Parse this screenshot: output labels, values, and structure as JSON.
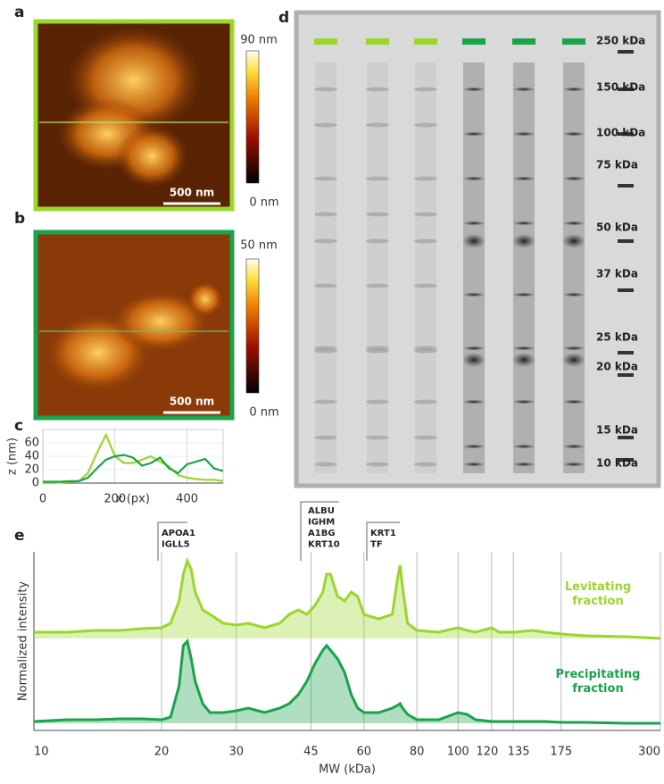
{
  "panel_labels": [
    "a",
    "b",
    "c",
    "d",
    "e"
  ],
  "afm": [
    {
      "scale_bar": "500 nm",
      "colorbar_max": "90 nm",
      "colorbar_min": "0 nm"
    },
    {
      "scale_bar": "500 nm",
      "colorbar_max": "50 nm",
      "colorbar_min": "0 nm"
    }
  ],
  "gel": {
    "markers": [
      "250 kDa",
      "150 kDa",
      "100 kDa",
      "75 kDa",
      "50 kDa",
      "37 kDa",
      "25 kDa",
      "20 kDa",
      "15 kDa",
      "10 kDa"
    ]
  },
  "annotations": [
    [
      "APOA1",
      "IGLL5"
    ],
    [
      "ALBU",
      "IGHM",
      "A1BG",
      "KRT10"
    ],
    [
      "KRT1",
      "TF"
    ]
  ],
  "chart_data": [
    {
      "type": "line",
      "xlabel": "x (px)",
      "ylabel": "z (nm)",
      "xlim": [
        0,
        500
      ],
      "ylim": [
        0,
        80
      ],
      "xticks": [
        0,
        200,
        400
      ],
      "yticks": [
        0,
        20,
        40,
        60
      ],
      "grid": true,
      "x": [
        0,
        25,
        50,
        75,
        100,
        125,
        150,
        175,
        200,
        225,
        250,
        275,
        300,
        325,
        350,
        375,
        400,
        425,
        450,
        475,
        500
      ],
      "series": [
        {
          "color": "#9bd62a",
          "values": [
            0,
            0,
            1,
            2,
            3,
            15,
            45,
            72,
            40,
            30,
            30,
            35,
            40,
            32,
            25,
            12,
            8,
            6,
            5,
            5,
            3
          ]
        },
        {
          "color": "#1aa34a",
          "values": [
            2,
            2,
            2,
            3,
            3,
            8,
            22,
            35,
            40,
            42,
            38,
            26,
            30,
            38,
            22,
            15,
            28,
            32,
            36,
            22,
            18
          ]
        }
      ]
    },
    {
      "type": "line",
      "xlabel": "MW (kDa)",
      "ylabel": "Normalized intensity",
      "log_x": true,
      "xlim": [
        10,
        300
      ],
      "ylim": [
        0,
        2
      ],
      "xticks": [
        10,
        20,
        30,
        45,
        60,
        80,
        100,
        120,
        135,
        175,
        300
      ],
      "grid": true,
      "x": [
        10,
        12,
        14,
        16,
        18,
        20,
        21,
        22,
        22.5,
        23,
        23.5,
        24,
        25,
        26,
        28,
        30,
        32,
        35,
        38,
        40,
        42,
        44,
        46,
        48,
        49,
        50,
        52,
        54,
        56,
        58,
        60,
        65,
        70,
        72,
        73,
        74,
        76,
        80,
        90,
        100,
        105,
        110,
        120,
        125,
        135,
        150,
        160,
        175,
        200,
        250,
        300
      ],
      "series": [
        {
          "name": "Levitating fraction",
          "color": "#9bd62a",
          "values": [
            1.1,
            1.1,
            1.12,
            1.12,
            1.14,
            1.15,
            1.2,
            1.45,
            1.75,
            1.9,
            1.8,
            1.55,
            1.35,
            1.3,
            1.2,
            1.18,
            1.2,
            1.15,
            1.2,
            1.3,
            1.35,
            1.3,
            1.4,
            1.55,
            1.75,
            1.75,
            1.5,
            1.45,
            1.55,
            1.5,
            1.3,
            1.25,
            1.3,
            1.7,
            1.85,
            1.6,
            1.2,
            1.12,
            1.1,
            1.15,
            1.12,
            1.1,
            1.15,
            1.1,
            1.1,
            1.12,
            1.1,
            1.08,
            1.06,
            1.05,
            1.03
          ]
        },
        {
          "name": "Precipitating fraction",
          "color": "#1aa34a",
          "values": [
            0.1,
            0.12,
            0.12,
            0.13,
            0.13,
            0.12,
            0.15,
            0.5,
            0.95,
            1.0,
            0.8,
            0.55,
            0.3,
            0.2,
            0.2,
            0.22,
            0.25,
            0.2,
            0.25,
            0.3,
            0.4,
            0.55,
            0.75,
            0.9,
            0.95,
            0.9,
            0.8,
            0.65,
            0.4,
            0.25,
            0.2,
            0.2,
            0.25,
            0.28,
            0.3,
            0.25,
            0.18,
            0.12,
            0.12,
            0.2,
            0.18,
            0.12,
            0.1,
            0.1,
            0.1,
            0.1,
            0.1,
            0.09,
            0.09,
            0.08,
            0.08
          ]
        }
      ]
    }
  ]
}
